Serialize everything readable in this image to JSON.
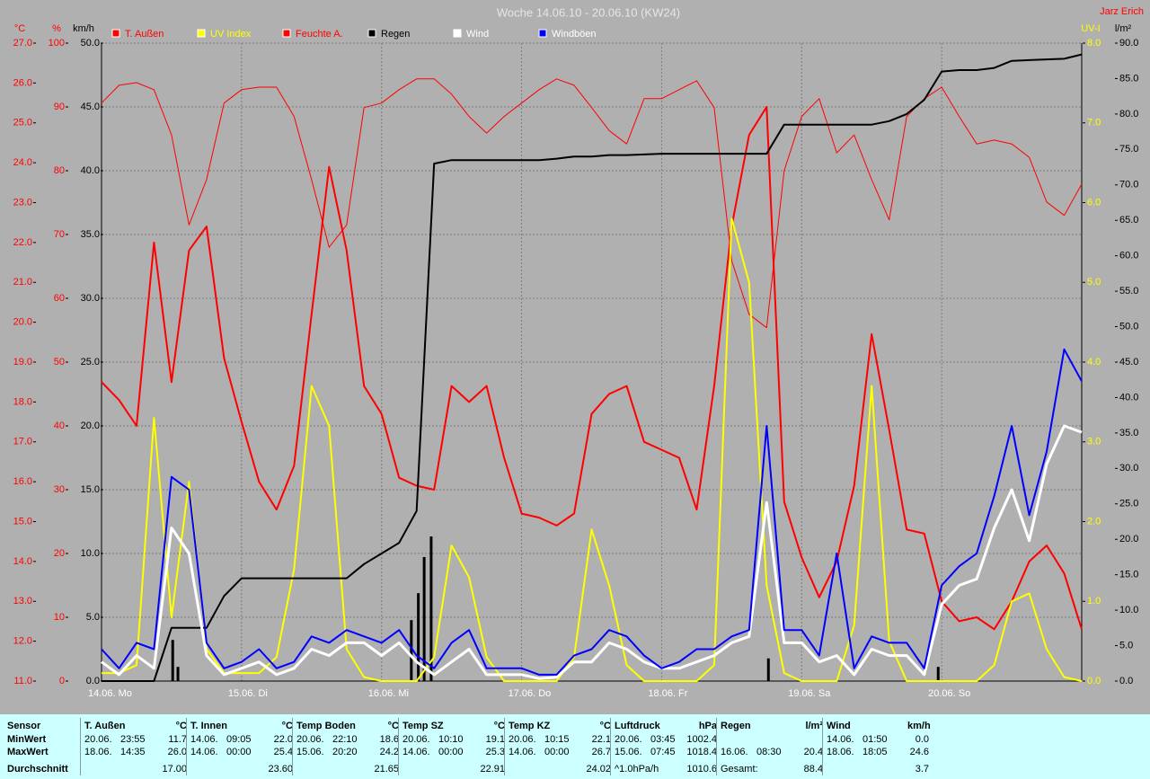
{
  "chart_data": {
    "type": "line",
    "title": "Woche 14.06.10 - 20.06.10 (KW24)",
    "author": "Jarz Erich",
    "xlim": [
      0,
      168
    ],
    "xticks": [
      {
        "value": 0,
        "label": "14.06. Mo"
      },
      {
        "value": 24,
        "label": "15.06. Di"
      },
      {
        "value": 48,
        "label": "16.06. Mi"
      },
      {
        "value": 72,
        "label": "17.06. Do"
      },
      {
        "value": 96,
        "label": "18.06. Fr"
      },
      {
        "value": 120,
        "label": "19.06. Sa"
      },
      {
        "value": 144,
        "label": "20.06. So"
      }
    ],
    "axes": [
      {
        "label": "°C",
        "side": "left",
        "color": "#ff0000",
        "lim": [
          11,
          27
        ],
        "ticks": [
          {
            "value": 11,
            "label": "11.0"
          },
          {
            "value": 12,
            "label": "12.0"
          },
          {
            "value": 13,
            "label": "13.0"
          },
          {
            "value": 14,
            "label": "14.0"
          },
          {
            "value": 15,
            "label": "15.0"
          },
          {
            "value": 16,
            "label": "16.0"
          },
          {
            "value": 17,
            "label": "17.0"
          },
          {
            "value": 18,
            "label": "18.0"
          },
          {
            "value": 19,
            "label": "19.0"
          },
          {
            "value": 20,
            "label": "20.0"
          },
          {
            "value": 21,
            "label": "21.0"
          },
          {
            "value": 22,
            "label": "22.0"
          },
          {
            "value": 23,
            "label": "23.0"
          },
          {
            "value": 24,
            "label": "24.0"
          },
          {
            "value": 25,
            "label": "25.0"
          },
          {
            "value": 26,
            "label": "26.0"
          },
          {
            "value": 27,
            "label": "27.0"
          }
        ]
      },
      {
        "label": "%",
        "side": "left",
        "color": "#ff0000",
        "grid": true,
        "lim": [
          0,
          100
        ],
        "ticks": [
          0,
          10,
          20,
          30,
          40,
          50,
          60,
          70,
          80,
          90,
          100
        ]
      },
      {
        "label": "km/h",
        "side": "left",
        "color": "#000000",
        "lim": [
          0,
          50
        ],
        "ticks": [
          {
            "value": 0,
            "label": "0.0"
          },
          {
            "value": 5,
            "label": "5.0"
          },
          {
            "value": 10,
            "label": "10.0"
          },
          {
            "value": 15,
            "label": "15.0"
          },
          {
            "value": 20,
            "label": "20.0"
          },
          {
            "value": 25,
            "label": "25.0"
          },
          {
            "value": 30,
            "label": "30.0"
          },
          {
            "value": 35,
            "label": "35.0"
          },
          {
            "value": 40,
            "label": "40.0"
          },
          {
            "value": 45,
            "label": "45.0"
          },
          {
            "value": 50,
            "label": "50.0"
          }
        ]
      },
      {
        "label": "UV-I",
        "side": "right",
        "color": "#ffff00",
        "lim": [
          0,
          8
        ],
        "ticks": [
          {
            "value": 0,
            "label": "0.0"
          },
          {
            "value": 1,
            "label": "1.0"
          },
          {
            "value": 2,
            "label": "2.0"
          },
          {
            "value": 3,
            "label": "3.0"
          },
          {
            "value": 4,
            "label": "4.0"
          },
          {
            "value": 5,
            "label": "5.0"
          },
          {
            "value": 6,
            "label": "6.0"
          },
          {
            "value": 7,
            "label": "7.0"
          },
          {
            "value": 8,
            "label": "8.0"
          }
        ]
      },
      {
        "label": "l/m²",
        "side": "right",
        "color": "#000000",
        "lim": [
          0,
          90
        ],
        "ticks": [
          {
            "value": 0,
            "label": "0.0"
          },
          {
            "value": 5,
            "label": "5.0"
          },
          {
            "value": 10,
            "label": "10.0"
          },
          {
            "value": 15,
            "label": "15.0"
          },
          {
            "value": 20,
            "label": "20.0"
          },
          {
            "value": 25,
            "label": "25.0"
          },
          {
            "value": 30,
            "label": "30.0"
          },
          {
            "value": 35,
            "label": "35.0"
          },
          {
            "value": 40,
            "label": "40.0"
          },
          {
            "value": 45,
            "label": "45.0"
          },
          {
            "value": 50,
            "label": "50.0"
          },
          {
            "value": 55,
            "label": "55.0"
          },
          {
            "value": 60,
            "label": "60.0"
          },
          {
            "value": 65,
            "label": "65.0"
          },
          {
            "value": 70,
            "label": "70.0"
          },
          {
            "value": 75,
            "label": "75.0"
          },
          {
            "value": 80,
            "label": "80.0"
          },
          {
            "value": 85,
            "label": "85.0"
          },
          {
            "value": 90,
            "label": "90.0"
          }
        ]
      }
    ],
    "x": [
      0,
      3,
      6,
      9,
      12,
      15,
      18,
      21,
      24,
      27,
      30,
      33,
      36,
      39,
      42,
      45,
      48,
      51,
      54,
      57,
      60,
      63,
      66,
      69,
      72,
      75,
      78,
      81,
      84,
      87,
      90,
      93,
      96,
      99,
      102,
      105,
      108,
      111,
      114,
      117,
      120,
      123,
      126,
      129,
      132,
      135,
      138,
      141,
      144,
      147,
      150,
      153,
      156,
      159,
      162,
      165,
      168
    ],
    "series": [
      {
        "name": "T. Außen",
        "color": "#ff0000",
        "axis": 0,
        "width": 2,
        "values": [
          18.5,
          18.05,
          17.4,
          22.0,
          18.5,
          21.8,
          22.4,
          19.1,
          17.5,
          16.0,
          15.3,
          16.4,
          20.2,
          23.9,
          21.8,
          18.4,
          17.7,
          16.1,
          15.9,
          15.8,
          18.4,
          18.0,
          18.4,
          16.6,
          15.2,
          15.1,
          14.9,
          15.2,
          17.7,
          18.2,
          18.4,
          17.0,
          16.8,
          16.6,
          15.3,
          18.4,
          22.4,
          24.7,
          25.4,
          15.5,
          14.1,
          13.1,
          14.0,
          15.9,
          19.7,
          17.3,
          14.8,
          14.7,
          13.0,
          12.5,
          12.6,
          12.3,
          13.0,
          14.0,
          14.4,
          13.7,
          12.3
        ]
      },
      {
        "name": "UV Index",
        "color": "#ffff00",
        "axis": 3,
        "width": 2,
        "values": [
          0.1,
          0.1,
          0.2,
          3.3,
          0.8,
          2.5,
          0.4,
          0.1,
          0.1,
          0.1,
          0.3,
          1.4,
          3.7,
          3.2,
          0.4,
          0.05,
          0,
          0,
          0,
          0.3,
          1.7,
          1.3,
          0.3,
          0,
          0,
          0,
          0,
          0.3,
          1.9,
          1.2,
          0.2,
          0,
          0,
          0,
          0,
          0.2,
          5.8,
          5.0,
          1.2,
          0.1,
          0,
          0,
          0,
          0.7,
          3.7,
          0.5,
          0,
          0,
          0,
          0,
          0,
          0.2,
          1.0,
          1.1,
          0.4,
          0.05,
          0
        ]
      },
      {
        "name": "Feuchte A.",
        "color": "#ff0000",
        "axis": 1,
        "width": 1,
        "values": [
          90.6,
          93.4,
          93.8,
          92.7,
          85.6,
          71.5,
          78.6,
          90.6,
          92.7,
          93.1,
          93.1,
          88.5,
          78.6,
          68.0,
          71.5,
          89.9,
          90.6,
          92.7,
          94.4,
          94.4,
          92.0,
          88.5,
          85.9,
          88.5,
          90.6,
          92.7,
          94.4,
          93.4,
          89.9,
          86.3,
          84.2,
          91.3,
          91.3,
          92.7,
          94.1,
          89.9,
          65.9,
          57.5,
          55.4,
          80.0,
          88.5,
          91.3,
          82.8,
          85.6,
          78.6,
          72.3,
          88.5,
          91.3,
          93.1,
          88.5,
          84.2,
          84.8,
          84.2,
          82.1,
          75.1,
          73.0,
          77.9
        ]
      },
      {
        "name": "Regen",
        "color": "#000000",
        "axis": 4,
        "width": 2,
        "values": [
          0,
          0,
          0,
          0,
          7.5,
          7.5,
          7.5,
          12,
          14.5,
          14.5,
          14.5,
          14.5,
          14.5,
          14.5,
          14.5,
          16.5,
          18,
          19.5,
          24,
          73,
          73.5,
          73.5,
          73.5,
          73.5,
          73.5,
          73.5,
          73.7,
          74,
          74,
          74.2,
          74.2,
          74.3,
          74.4,
          74.4,
          74.4,
          74.4,
          74.4,
          74.4,
          74.4,
          78.5,
          78.5,
          78.5,
          78.5,
          78.5,
          78.5,
          79,
          80,
          82,
          86,
          86.2,
          86.2,
          86.5,
          87.5,
          87.6,
          87.7,
          87.8,
          88.4
        ]
      },
      {
        "name": "Wind",
        "color": "#ffffff",
        "axis": 2,
        "width": 3,
        "values": [
          1.5,
          0.5,
          2,
          1,
          12,
          10,
          2,
          0.5,
          1,
          1.5,
          0.5,
          1,
          2.5,
          2,
          3,
          3,
          2,
          3,
          1.5,
          0.5,
          1.5,
          2.5,
          0.5,
          0.5,
          0.5,
          0.2,
          0.3,
          1.5,
          1.5,
          3,
          2.5,
          1.5,
          1,
          1,
          1.5,
          2,
          3,
          3.5,
          14,
          3,
          3,
          1.5,
          2,
          0.5,
          2.5,
          2,
          2,
          0.5,
          6,
          7.5,
          8,
          12,
          15,
          11,
          17,
          20,
          19.5
        ]
      },
      {
        "name": "Windböen",
        "color": "#0000ff",
        "axis": 2,
        "width": 2,
        "values": [
          2.5,
          1,
          3,
          2.5,
          16,
          15,
          3,
          1,
          1.5,
          2.5,
          1,
          1.5,
          3.5,
          3,
          4,
          3.5,
          3,
          4,
          2,
          1,
          3,
          4,
          1,
          1,
          1,
          0.5,
          0.5,
          2,
          2.5,
          4,
          3.5,
          2,
          1,
          1.5,
          2.5,
          2.5,
          3.5,
          4,
          20,
          4,
          4,
          2,
          10,
          1,
          3.5,
          3,
          3,
          1,
          7.5,
          9,
          10,
          14.5,
          20,
          13,
          18,
          26,
          23.5
        ]
      }
    ],
    "rain_bars": {
      "color": "#000000",
      "axis": 4,
      "x": [
        12.2,
        13.1,
        53.1,
        54.3,
        55.3,
        56.5,
        114.3,
        143.4
      ],
      "values": [
        5.8,
        2,
        8.6,
        12.4,
        17.5,
        20.4,
        3.2,
        2.0
      ]
    }
  },
  "stats": {
    "row_labels": [
      "Sensor",
      "MinWert",
      "MaxWert",
      "Durchschnitt"
    ],
    "groups": [
      {
        "name": "T. Außen",
        "unit": "°C",
        "rows": [
          {
            "date": "20.06.",
            "time": "23:55",
            "value": "11.7"
          },
          {
            "date": "18.06.",
            "time": "14:35",
            "value": "26.0"
          },
          {
            "value": "17.00"
          }
        ]
      },
      {
        "name": "T. Innen",
        "unit": "°C",
        "rows": [
          {
            "date": "14.06.",
            "time": "09:05",
            "value": "22.0"
          },
          {
            "date": "14.06.",
            "time": "00:00",
            "value": "25.4"
          },
          {
            "value": "23.60"
          }
        ]
      },
      {
        "name": "Temp Boden",
        "unit": "°C",
        "rows": [
          {
            "date": "20.06.",
            "time": "22:10",
            "value": "18.6"
          },
          {
            "date": "15.06.",
            "time": "20:20",
            "value": "24.2"
          },
          {
            "value": "21.65"
          }
        ]
      },
      {
        "name": "Temp SZ",
        "unit": "°C",
        "rows": [
          {
            "date": "20.06.",
            "time": "10:10",
            "value": "19.1"
          },
          {
            "date": "14.06.",
            "time": "00:00",
            "value": "25.3"
          },
          {
            "value": "22.91"
          }
        ]
      },
      {
        "name": "Temp KZ",
        "unit": "°C",
        "rows": [
          {
            "date": "20.06.",
            "time": "10:15",
            "value": "22.1"
          },
          {
            "date": "14.06.",
            "time": "00:00",
            "value": "26.7"
          },
          {
            "value": "24.02"
          }
        ]
      },
      {
        "name": "Luftdruck",
        "unit": "hPa",
        "rows": [
          {
            "date": "20.06.",
            "time": "03:45",
            "value": "1002.4"
          },
          {
            "date": "15.06.",
            "time": "07:45",
            "value": "1018.4"
          },
          {
            "date": "^1.0hPa/h",
            "value": "1010.6"
          }
        ]
      },
      {
        "name": "Regen",
        "unit": "l/m²",
        "rows": [
          {},
          {
            "date": "16.06.",
            "time": "08:30",
            "value": "20.4"
          },
          {
            "date": "Gesamt:",
            "value": "88.4"
          }
        ]
      },
      {
        "name": "Wind",
        "unit": "km/h",
        "rows": [
          {
            "date": "14.06.",
            "time": "01:50",
            "value": "0.0"
          },
          {
            "date": "18.06.",
            "time": "18:05",
            "value": "24.6"
          },
          {
            "value": "3.7"
          }
        ]
      }
    ]
  }
}
